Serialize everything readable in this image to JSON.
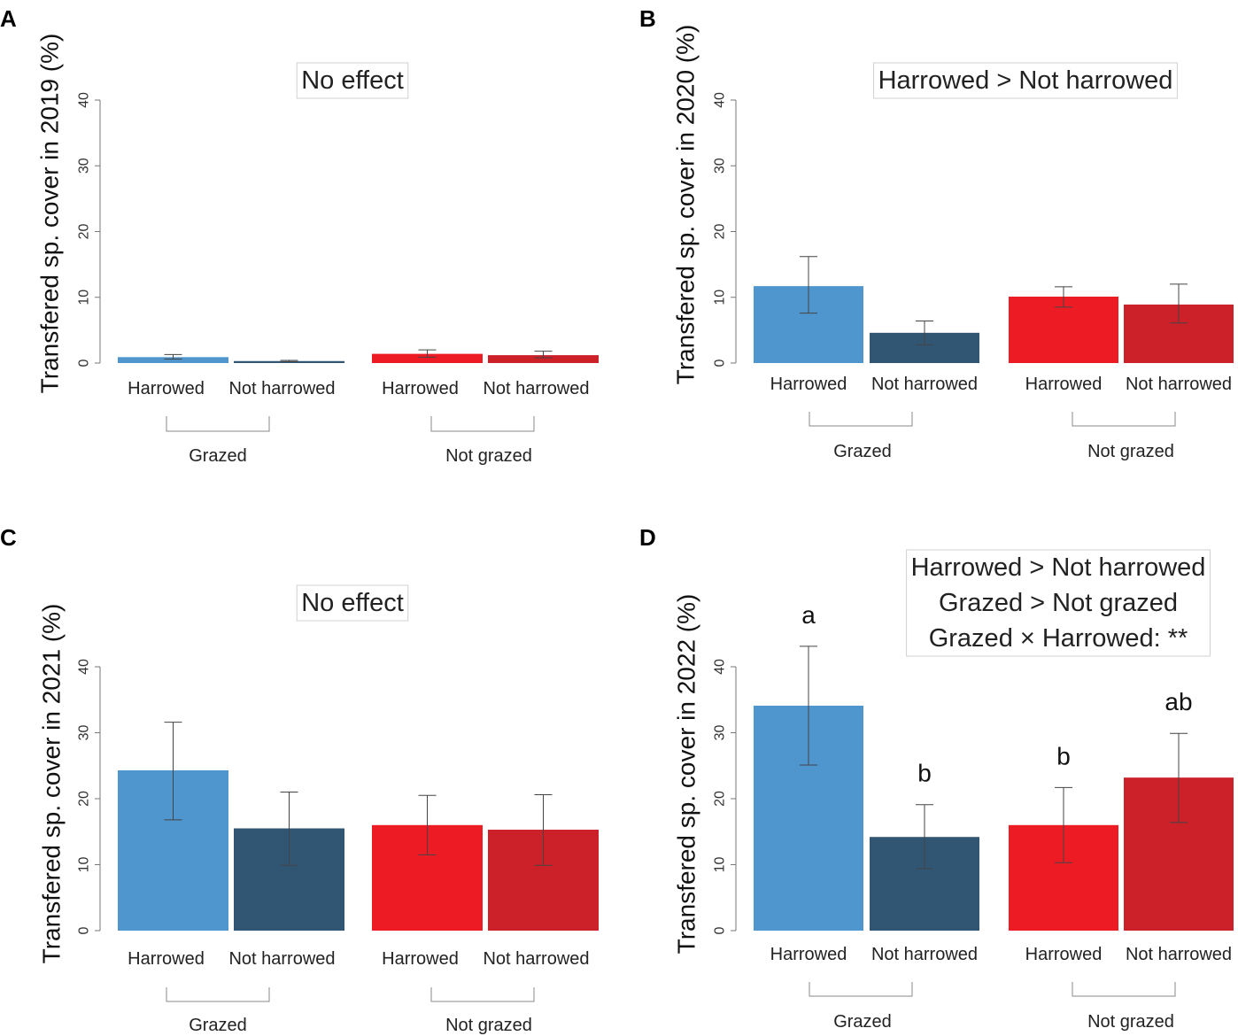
{
  "chart_data": [
    {
      "panel": "A",
      "type": "bar",
      "ylabel": "Transfered sp. cover in 2019 (%)",
      "ylim": [
        0,
        40
      ],
      "yticks": [
        0,
        10,
        20,
        30,
        40
      ],
      "annotation": [
        "No effect"
      ],
      "groups": [
        {
          "label": "Grazed",
          "bars": [
            {
              "category": "Harrowed",
              "value": 0.9,
              "error": [
                0.6,
                1.3
              ],
              "color": "#4f95ce"
            },
            {
              "category": "Not harrowed",
              "value": 0.3,
              "error": [
                0.2,
                0.4
              ],
              "color": "#315674"
            }
          ]
        },
        {
          "label": "Not grazed",
          "bars": [
            {
              "category": "Harrowed",
              "value": 1.4,
              "error": [
                0.9,
                2.0
              ],
              "color": "#ed1c24"
            },
            {
              "category": "Not harrowed",
              "value": 1.2,
              "error": [
                0.8,
                1.8
              ],
              "color": "#cc2129"
            }
          ]
        }
      ]
    },
    {
      "panel": "B",
      "type": "bar",
      "ylabel": "Transfered sp. cover in 2020 (%)",
      "ylim": [
        0,
        40
      ],
      "yticks": [
        0,
        10,
        20,
        30,
        40
      ],
      "annotation": [
        "Harrowed > Not harrowed"
      ],
      "groups": [
        {
          "label": "Grazed",
          "bars": [
            {
              "category": "Harrowed",
              "value": 11.7,
              "error": [
                7.6,
                16.2
              ],
              "color": "#4f95ce"
            },
            {
              "category": "Not harrowed",
              "value": 4.6,
              "error": [
                2.8,
                6.4
              ],
              "color": "#315674"
            }
          ]
        },
        {
          "label": "Not grazed",
          "bars": [
            {
              "category": "Harrowed",
              "value": 10.1,
              "error": [
                8.5,
                11.6
              ],
              "color": "#ed1c24"
            },
            {
              "category": "Not harrowed",
              "value": 8.9,
              "error": [
                6.1,
                12.0
              ],
              "color": "#cc2129"
            }
          ]
        }
      ]
    },
    {
      "panel": "C",
      "type": "bar",
      "ylabel": "Transfered sp. cover in 2021 (%)",
      "ylim": [
        0,
        40
      ],
      "yticks": [
        0,
        10,
        20,
        30,
        40
      ],
      "annotation": [
        "No effect"
      ],
      "groups": [
        {
          "label": "Grazed",
          "bars": [
            {
              "category": "Harrowed",
              "value": 24.3,
              "error": [
                16.8,
                31.6
              ],
              "color": "#4f95ce"
            },
            {
              "category": "Not harrowed",
              "value": 15.5,
              "error": [
                9.9,
                21.0
              ],
              "color": "#315674"
            }
          ]
        },
        {
          "label": "Not grazed",
          "bars": [
            {
              "category": "Harrowed",
              "value": 16.0,
              "error": [
                11.5,
                20.5
              ],
              "color": "#ed1c24"
            },
            {
              "category": "Not harrowed",
              "value": 15.3,
              "error": [
                9.9,
                20.6
              ],
              "color": "#cc2129"
            }
          ]
        }
      ]
    },
    {
      "panel": "D",
      "type": "bar",
      "ylabel": "Transfered sp. cover in 2022 (%)",
      "ylim": [
        0,
        40
      ],
      "yticks": [
        0,
        10,
        20,
        30,
        40
      ],
      "annotation": [
        "Harrowed > Not harrowed",
        "Grazed > Not grazed",
        "Grazed × Harrowed: **"
      ],
      "groups": [
        {
          "label": "Grazed",
          "bars": [
            {
              "category": "Harrowed",
              "value": 34.1,
              "error": [
                25.1,
                43.1
              ],
              "color": "#4f95ce",
              "letter": "a"
            },
            {
              "category": "Not harrowed",
              "value": 14.2,
              "error": [
                9.4,
                19.1
              ],
              "color": "#315674",
              "letter": "b"
            }
          ]
        },
        {
          "label": "Not grazed",
          "bars": [
            {
              "category": "Harrowed",
              "value": 16.0,
              "error": [
                10.3,
                21.7
              ],
              "color": "#ed1c24",
              "letter": "b"
            },
            {
              "category": "Not harrowed",
              "value": 23.2,
              "error": [
                16.4,
                29.9
              ],
              "color": "#cc2129",
              "letter": "ab"
            }
          ]
        }
      ]
    }
  ]
}
